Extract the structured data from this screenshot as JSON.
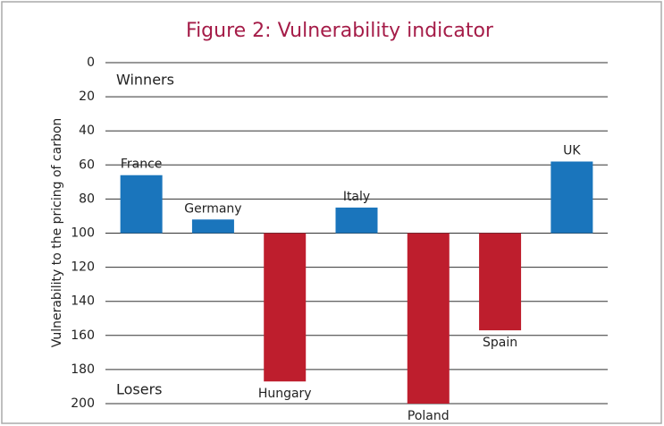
{
  "chart_data": {
    "type": "bar",
    "title": "Figure 2: Vulnerability indicator",
    "y_label": "Vulnerability to the pricing of carbon",
    "annotations": [
      "Winners",
      "Losers"
    ],
    "categories": [
      "France",
      "Germany",
      "Hungary",
      "Italy",
      "Poland",
      "Spain",
      "UK"
    ],
    "values": [
      66,
      92,
      187,
      85,
      200,
      157,
      58
    ],
    "colors": [
      "#1a75bc",
      "#1a75bc",
      "#be1e2d",
      "#1a75bc",
      "#be1e2d",
      "#be1e2d",
      "#1a75bc"
    ],
    "baseline": 100,
    "ylim": [
      0,
      200
    ],
    "yticks": [
      0,
      20,
      40,
      60,
      80,
      100,
      120,
      140,
      160,
      180,
      200
    ],
    "y_inverted": true,
    "grid": true
  }
}
